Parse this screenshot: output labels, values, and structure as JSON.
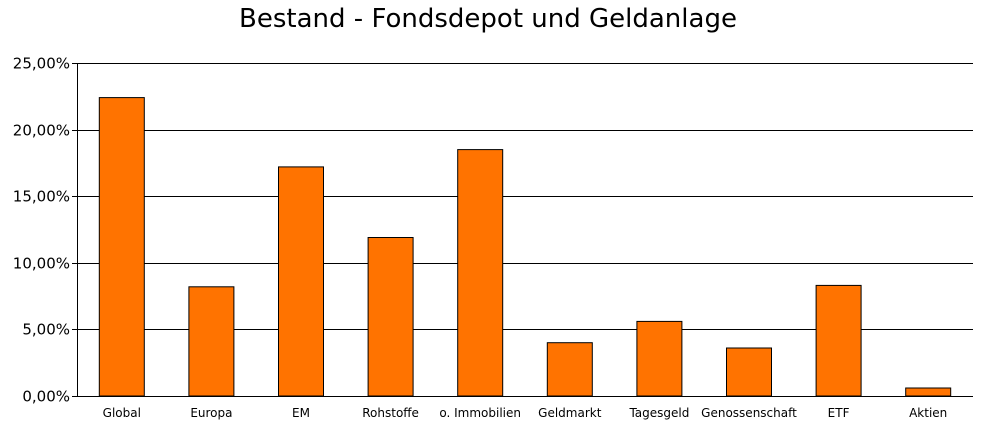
{
  "chart_data": {
    "type": "bar",
    "title": "Bestand - Fondsdepot und Geldanlage",
    "xlabel": "",
    "ylabel": "",
    "categories": [
      "Global",
      "Europa",
      "EM",
      "Rohstoffe",
      "o. Immobilien",
      "Geldmarkt",
      "Tagesgeld",
      "Genossenschaft",
      "ETF",
      "Aktien"
    ],
    "values": [
      22.4,
      8.2,
      17.2,
      11.9,
      18.5,
      4.0,
      5.6,
      3.6,
      8.3,
      0.6
    ],
    "ylim": [
      0,
      25
    ],
    "yticks": [
      0,
      5,
      10,
      15,
      20,
      25
    ],
    "ytick_labels": [
      "0,00%",
      "5,00%",
      "10,00%",
      "15,00%",
      "20,00%",
      "25,00%"
    ],
    "grid": true,
    "colors": {
      "bar": "#ff7300",
      "bar_stroke": "#000000",
      "grid": "#000000"
    }
  }
}
